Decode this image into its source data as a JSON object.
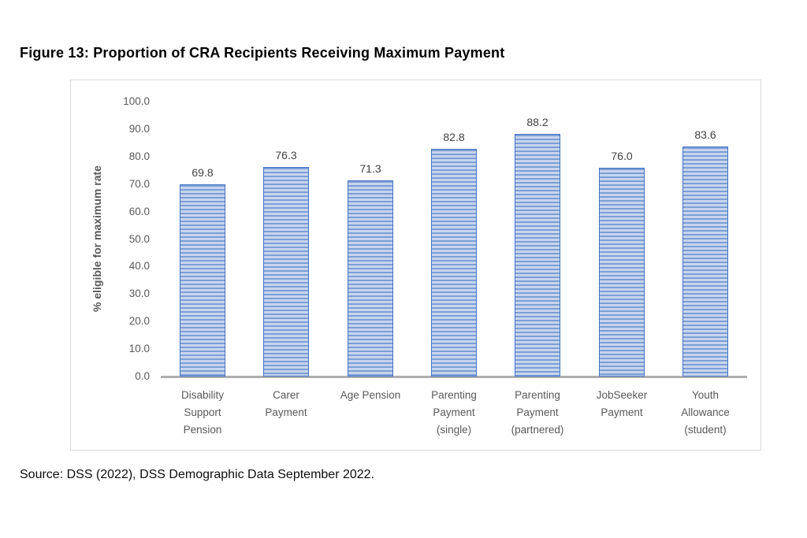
{
  "figure": {
    "title": "Figure 13: Proportion of CRA Recipients Receiving Maximum Payment"
  },
  "source": {
    "text": "Source: DSS (2022), DSS Demographic Data September 2022."
  },
  "chart_data": {
    "type": "bar",
    "title": "Figure 13: Proportion of CRA Recipients Receiving Maximum Payment",
    "xlabel": "",
    "ylabel": "% eligible for maximum rate",
    "ylim": [
      0,
      100
    ],
    "ytick_step": 10,
    "yticks": [
      0.0,
      10.0,
      20.0,
      30.0,
      40.0,
      50.0,
      60.0,
      70.0,
      80.0,
      90.0,
      100.0
    ],
    "grid": false,
    "legend": false,
    "data_labels": true,
    "categories": [
      {
        "label": "Disability Support Pension",
        "lines": [
          "Disability",
          "Support",
          "Pension"
        ]
      },
      {
        "label": "Carer Payment",
        "lines": [
          "Carer",
          "Payment"
        ]
      },
      {
        "label": "Age Pension",
        "lines": [
          "Age Pension"
        ]
      },
      {
        "label": "Parenting Payment (single)",
        "lines": [
          "Parenting",
          "Payment",
          "(single)"
        ]
      },
      {
        "label": "Parenting Payment (partnered)",
        "lines": [
          "Parenting",
          "Payment",
          "(partnered)"
        ]
      },
      {
        "label": "JobSeeker Payment",
        "lines": [
          "JobSeeker",
          "Payment"
        ]
      },
      {
        "label": "Youth Allowance (student)",
        "lines": [
          "Youth",
          "Allowance",
          "(student)"
        ]
      }
    ],
    "values": [
      69.8,
      76.3,
      71.3,
      82.8,
      88.2,
      76.0,
      83.6
    ]
  },
  "colors": {
    "bar_stripe_dark": "#7d9fd4",
    "bar_stripe_light": "#c6d5ee",
    "bar_border": "#4472c4",
    "axis_line": "#aeaeae",
    "axis_text": "#595959",
    "data_label_text": "#404040",
    "chart_border": "#d9d9d9"
  }
}
